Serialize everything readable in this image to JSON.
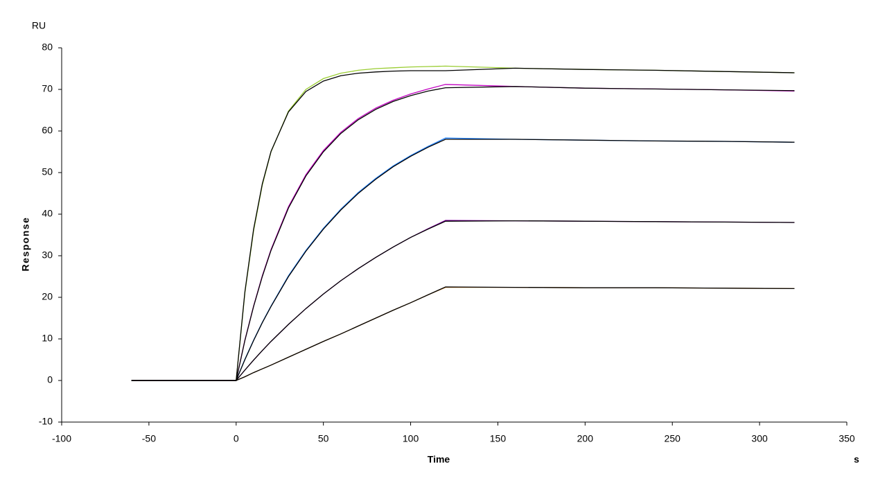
{
  "chart_data": {
    "type": "line",
    "y_unit": "RU",
    "ylabel": "Response",
    "xlabel": "Time",
    "x_unit": "s",
    "x": [
      -60,
      0,
      5,
      10,
      15,
      20,
      30,
      40,
      50,
      60,
      70,
      80,
      90,
      100,
      110,
      120,
      160,
      200,
      240,
      280,
      320
    ],
    "series": [
      {
        "color": "#9acd32",
        "values": [
          0,
          0,
          21.0,
          36.0,
          47.0,
          55.0,
          64.8,
          70.0,
          72.6,
          73.9,
          74.6,
          75.0,
          75.2,
          75.4,
          75.5,
          75.6,
          75.1,
          74.8,
          74.6,
          74.3,
          74.0
        ]
      },
      {
        "color": "#c000c0",
        "values": [
          0,
          0,
          9.7,
          17.9,
          25.2,
          31.5,
          41.8,
          49.5,
          55.3,
          59.7,
          63.0,
          65.5,
          67.4,
          68.9,
          70.1,
          71.2,
          70.7,
          70.3,
          70.1,
          69.9,
          69.6
        ]
      },
      {
        "color": "#2080ff",
        "values": [
          0,
          0,
          5.1,
          9.7,
          14.0,
          17.9,
          25.2,
          31.3,
          36.6,
          41.2,
          45.2,
          48.6,
          51.6,
          54.1,
          56.3,
          58.3,
          58.0,
          57.8,
          57.6,
          57.5,
          57.3
        ]
      },
      {
        "color": "#8000a0",
        "values": [
          0,
          0,
          2.5,
          4.9,
          7.2,
          9.4,
          13.5,
          17.3,
          20.8,
          24.0,
          26.9,
          29.6,
          32.1,
          34.4,
          36.5,
          38.5,
          38.4,
          38.3,
          38.2,
          38.1,
          38.0
        ]
      },
      {
        "color": "#d08020",
        "values": [
          0,
          0,
          0.9,
          1.9,
          2.8,
          3.7,
          5.6,
          7.5,
          9.4,
          11.2,
          13.1,
          15.0,
          16.9,
          18.7,
          20.6,
          22.4,
          22.4,
          22.3,
          22.3,
          22.2,
          22.1
        ]
      },
      {
        "color": "#000000",
        "values": [
          0,
          0,
          21.3,
          36.4,
          47.3,
          55.1,
          64.6,
          69.5,
          72.0,
          73.3,
          73.9,
          74.2,
          74.4,
          74.5,
          74.5,
          74.5,
          75.1,
          74.8,
          74.6,
          74.3,
          74.0
        ]
      },
      {
        "color": "#000000",
        "values": [
          0,
          0,
          9.6,
          17.8,
          25.0,
          31.3,
          41.5,
          49.2,
          55.0,
          59.4,
          62.7,
          65.2,
          67.1,
          68.5,
          69.6,
          70.4,
          70.7,
          70.3,
          70.1,
          69.9,
          69.7
        ]
      },
      {
        "color": "#000000",
        "values": [
          0,
          0,
          5.0,
          9.6,
          13.9,
          17.8,
          25.0,
          31.1,
          36.4,
          41.0,
          45.0,
          48.4,
          51.4,
          53.9,
          56.1,
          58.0,
          58.0,
          57.8,
          57.6,
          57.5,
          57.3
        ]
      },
      {
        "color": "#000000",
        "values": [
          0,
          0,
          2.5,
          4.9,
          7.2,
          9.4,
          13.5,
          17.3,
          20.8,
          24.0,
          26.9,
          29.6,
          32.1,
          34.4,
          36.4,
          38.3,
          38.4,
          38.3,
          38.2,
          38.1,
          38.0
        ]
      },
      {
        "color": "#000000",
        "values": [
          0,
          0,
          0.9,
          1.9,
          2.8,
          3.7,
          5.6,
          7.5,
          9.4,
          11.2,
          13.1,
          15.0,
          16.9,
          18.7,
          20.6,
          22.5,
          22.4,
          22.3,
          22.3,
          22.2,
          22.1
        ]
      }
    ],
    "xlim": [
      -100,
      350
    ],
    "xticks": [
      -100,
      -50,
      0,
      50,
      100,
      150,
      200,
      250,
      300,
      350
    ],
    "ylim": [
      -10,
      80
    ],
    "yticks": [
      -10,
      0,
      10,
      20,
      30,
      40,
      50,
      60,
      70,
      80
    ],
    "grid": false
  }
}
